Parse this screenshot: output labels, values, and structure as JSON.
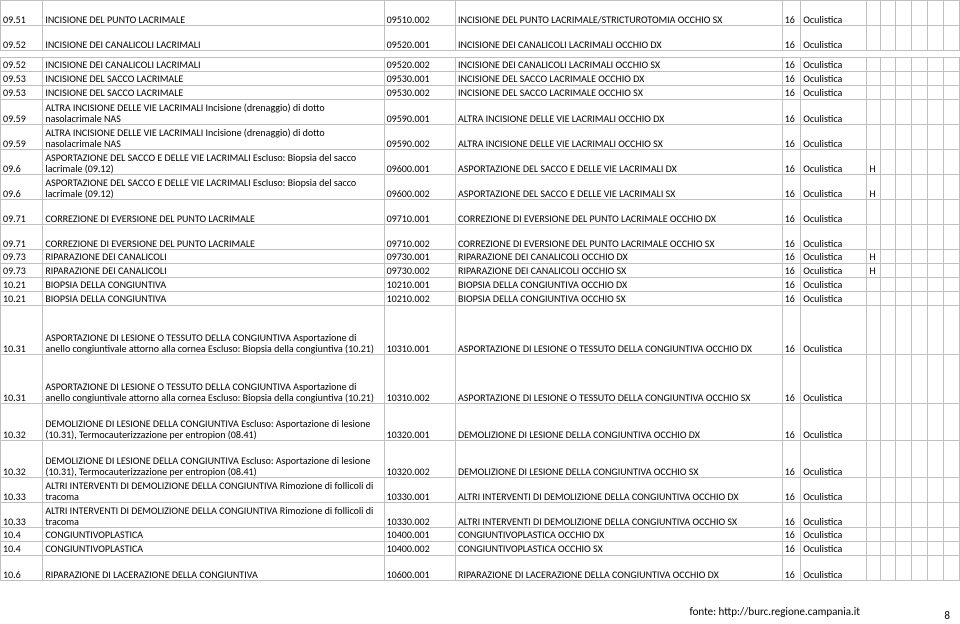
{
  "fonte": "fonte: http://burc.regione.campania.it",
  "pageNumber": "8",
  "branch": "Oculistica",
  "qty": "16",
  "rows": [
    {
      "c": "09.51",
      "d1": "INCISIONE DEL PUNTO LACRIMALE",
      "c2": "09510.002",
      "d2": "INCISIONE DEL PUNTO LACRIMALE/STRICTUROTOMIA OCCHIO SX",
      "h": "h2",
      "f": ""
    },
    {
      "c": "09.52",
      "d1": "INCISIONE DEI CANALICOLI LACRIMALI",
      "c2": "09520.001",
      "d2": "INCISIONE DEI CANALICOLI LACRIMALI OCCHIO DX",
      "h": "h2",
      "f": ""
    },
    {
      "c": "09.52",
      "d1": "INCISIONE DEI CANALICOLI LACRIMALI",
      "c2": "09520.002",
      "d2": "INCISIONE DEI CANALICOLI LACRIMALI OCCHIO SX",
      "h": "",
      "f": "",
      "gap": true
    },
    {
      "c": "09.53",
      "d1": "INCISIONE DEL SACCO LACRIMALE",
      "c2": "09530.001",
      "d2": "INCISIONE DEL SACCO LACRIMALE OCCHIO DX",
      "h": "",
      "f": ""
    },
    {
      "c": "09.53",
      "d1": "INCISIONE DEL SACCO LACRIMALE",
      "c2": "09530.002",
      "d2": "INCISIONE DEL SACCO LACRIMALE OCCHIO SX",
      "h": "",
      "f": ""
    },
    {
      "c": "09.59",
      "d1": "ALTRA INCISIONE DELLE VIE LACRIMALI Incisione (drenaggio) di dotto nasolacrimale NAS",
      "c2": "09590.001",
      "d2": "ALTRA INCISIONE DELLE VIE LACRIMALI OCCHIO DX",
      "h": "h2",
      "f": ""
    },
    {
      "c": "09.59",
      "d1": "ALTRA INCISIONE DELLE VIE LACRIMALI Incisione (drenaggio) di dotto nasolacrimale NAS",
      "c2": "09590.002",
      "d2": "ALTRA INCISIONE DELLE VIE LACRIMALI OCCHIO SX",
      "h": "h2",
      "f": ""
    },
    {
      "c": "09.6",
      "d1": "ASPORTAZIONE DEL SACCO E DELLE VIE LACRIMALI Escluso: Biopsia del sacco lacrimale (09.12)",
      "c2": "09600.001",
      "d2": "ASPORTAZIONE DEL SACCO E DELLE VIE LACRIMALI DX",
      "h": "h2",
      "f": "H"
    },
    {
      "c": "09.6",
      "d1": "ASPORTAZIONE DEL SACCO E DELLE VIE LACRIMALI Escluso: Biopsia del sacco lacrimale (09.12)",
      "c2": "09600.002",
      "d2": "ASPORTAZIONE DEL SACCO E DELLE VIE LACRIMALI SX",
      "h": "h2",
      "f": "H"
    },
    {
      "c": "09.71",
      "d1": "CORREZIONE DI EVERSIONE DEL PUNTO LACRIMALE",
      "c2": "09710.001",
      "d2": "CORREZIONE DI EVERSIONE DEL PUNTO LACRIMALE OCCHIO DX",
      "h": "h2",
      "f": ""
    },
    {
      "c": "09.71",
      "d1": "CORREZIONE DI EVERSIONE DEL PUNTO LACRIMALE",
      "c2": "09710.002",
      "d2": "CORREZIONE DI EVERSIONE DEL PUNTO LACRIMALE OCCHIO SX",
      "h": "h2",
      "f": ""
    },
    {
      "c": "09.73",
      "d1": "RIPARAZIONE DEI CANALICOLI",
      "c2": "09730.001",
      "d2": "RIPARAZIONE DEI CANALICOLI OCCHIO DX",
      "h": "",
      "f": "H"
    },
    {
      "c": "09.73",
      "d1": "RIPARAZIONE DEI CANALICOLI",
      "c2": "09730.002",
      "d2": "RIPARAZIONE DEI CANALICOLI OCCHIO SX",
      "h": "",
      "f": "H"
    },
    {
      "c": "10.21",
      "d1": "BIOPSIA DELLA CONGIUNTIVA",
      "c2": "10210.001",
      "d2": "BIOPSIA DELLA CONGIUNTIVA OCCHIO DX",
      "h": "",
      "f": ""
    },
    {
      "c": "10.21",
      "d1": "BIOPSIA DELLA CONGIUNTIVA",
      "c2": "10210.002",
      "d2": "BIOPSIA DELLA CONGIUNTIVA OCCHIO SX",
      "h": "",
      "f": ""
    },
    {
      "c": "10.31",
      "d1": "ASPORTAZIONE DI LESIONE O TESSUTO DELLA CONGIUNTIVA Asportazione di anello congiuntivale attorno alla cornea Escluso: Biopsia della congiuntiva (10.21)",
      "c2": "10310.001",
      "d2": "ASPORTAZIONE DI LESIONE O TESSUTO DELLA CONGIUNTIVA OCCHIO DX",
      "h": "h4",
      "f": ""
    },
    {
      "c": "10.31",
      "d1": "ASPORTAZIONE DI LESIONE O TESSUTO DELLA CONGIUNTIVA Asportazione di anello congiuntivale attorno alla cornea Escluso: Biopsia della congiuntiva (10.21)",
      "c2": "10310.002",
      "d2": "ASPORTAZIONE DI LESIONE O TESSUTO DELLA CONGIUNTIVA OCCHIO SX",
      "h": "h4",
      "f": ""
    },
    {
      "c": "10.32",
      "d1": "DEMOLIZIONE DI LESIONE DELLA CONGIUNTIVA Escluso: Asportazione di lesione (10.31), Termocauterizzazione per entropion (08.41)",
      "c2": "10320.001",
      "d2": "DEMOLIZIONE DI LESIONE DELLA CONGIUNTIVA OCCHIO DX",
      "h": "h3",
      "f": ""
    },
    {
      "c": "10.32",
      "d1": "DEMOLIZIONE DI LESIONE DELLA CONGIUNTIVA Escluso: Asportazione di lesione (10.31), Termocauterizzazione per entropion (08.41)",
      "c2": "10320.002",
      "d2": "DEMOLIZIONE DI LESIONE DELLA CONGIUNTIVA OCCHIO SX",
      "h": "h3",
      "f": ""
    },
    {
      "c": "10.33",
      "d1": "ALTRI INTERVENTI DI DEMOLIZIONE DELLA CONGIUNTIVA Rimozione di follicoli di tracoma",
      "c2": "10330.001",
      "d2": "ALTRI INTERVENTI DI DEMOLIZIONE DELLA CONGIUNTIVA OCCHIO DX",
      "h": "h2",
      "f": ""
    },
    {
      "c": "10.33",
      "d1": "ALTRI INTERVENTI DI DEMOLIZIONE DELLA CONGIUNTIVA Rimozione di follicoli di tracoma",
      "c2": "10330.002",
      "d2": "ALTRI INTERVENTI DI DEMOLIZIONE DELLA CONGIUNTIVA OCCHIO SX",
      "h": "h2",
      "f": ""
    },
    {
      "c": "10.4",
      "d1": "CONGIUNTIVOPLASTICA",
      "c2": "10400.001",
      "d2": "CONGIUNTIVOPLASTICA OCCHIO DX",
      "h": "",
      "f": ""
    },
    {
      "c": "10.4",
      "d1": "CONGIUNTIVOPLASTICA",
      "c2": "10400.002",
      "d2": "CONGIUNTIVOPLASTICA OCCHIO SX",
      "h": "",
      "f": ""
    },
    {
      "c": "10.6",
      "d1": "RIPARAZIONE DI LACERAZIONE DELLA CONGIUNTIVA",
      "c2": "10600.001",
      "d2": "RIPARAZIONE DI LACERAZIONE DELLA CONGIUNTIVA OCCHIO DX",
      "h": "h2",
      "f": ""
    }
  ]
}
